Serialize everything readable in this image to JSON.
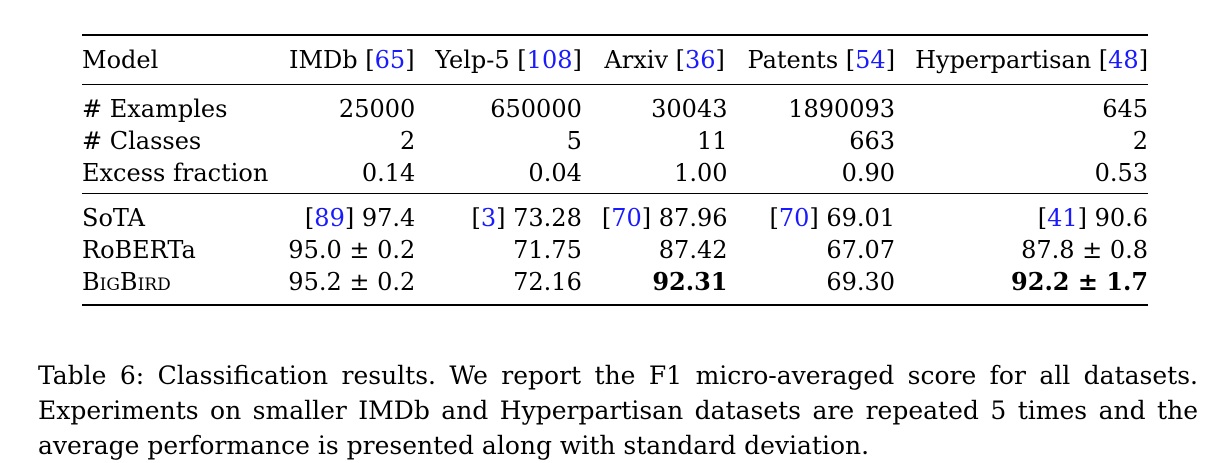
{
  "table": {
    "headers": [
      {
        "name": "Model",
        "ref": ""
      },
      {
        "name": "IMDb",
        "ref": "65"
      },
      {
        "name": "Yelp-5",
        "ref": "108"
      },
      {
        "name": "Arxiv",
        "ref": "36"
      },
      {
        "name": "Patents",
        "ref": "54"
      },
      {
        "name": "Hyperpartisan",
        "ref": "48"
      }
    ],
    "stats": [
      {
        "label": "# Examples",
        "values": [
          "25000",
          "650000",
          "30043",
          "1890093",
          "645"
        ]
      },
      {
        "label": "# Classes",
        "values": [
          "2",
          "5",
          "11",
          "663",
          "2"
        ]
      },
      {
        "label": "Excess fraction",
        "values": [
          "0.14",
          "0.04",
          "1.00",
          "0.90",
          "0.53"
        ]
      }
    ],
    "results": [
      {
        "label": "SoTA",
        "cells": [
          {
            "ref": "89",
            "value": "97.4"
          },
          {
            "ref": "3",
            "value": "73.28"
          },
          {
            "ref": "70",
            "value": "87.96"
          },
          {
            "ref": "70",
            "value": "69.01"
          },
          {
            "ref": "41",
            "value": "90.6"
          }
        ]
      },
      {
        "label": "RoBERTa",
        "cells": [
          {
            "ref": "",
            "value": "95.0 ± 0.2"
          },
          {
            "ref": "",
            "value": "71.75"
          },
          {
            "ref": "",
            "value": "87.42"
          },
          {
            "ref": "",
            "value": "67.07"
          },
          {
            "ref": "",
            "value": "87.8 ± 0.8"
          }
        ]
      },
      {
        "label": "BigBird",
        "cells": [
          {
            "ref": "",
            "value": "95.2 ± 0.2"
          },
          {
            "ref": "",
            "value": "72.16"
          },
          {
            "ref": "",
            "value": "92.31",
            "bold": true
          },
          {
            "ref": "",
            "value": "69.30"
          },
          {
            "ref": "",
            "value": "92.2 ± 1.7",
            "bold": true
          }
        ]
      }
    ]
  },
  "caption": "Table 6: Classification results. We report the F1 micro-averaged score for all datasets. Experiments on smaller IMDb and Hyperpartisan datasets are repeated 5 times and the average performance is presented along with standard deviation.",
  "colors": {
    "reference_link": "#1a1aff"
  }
}
